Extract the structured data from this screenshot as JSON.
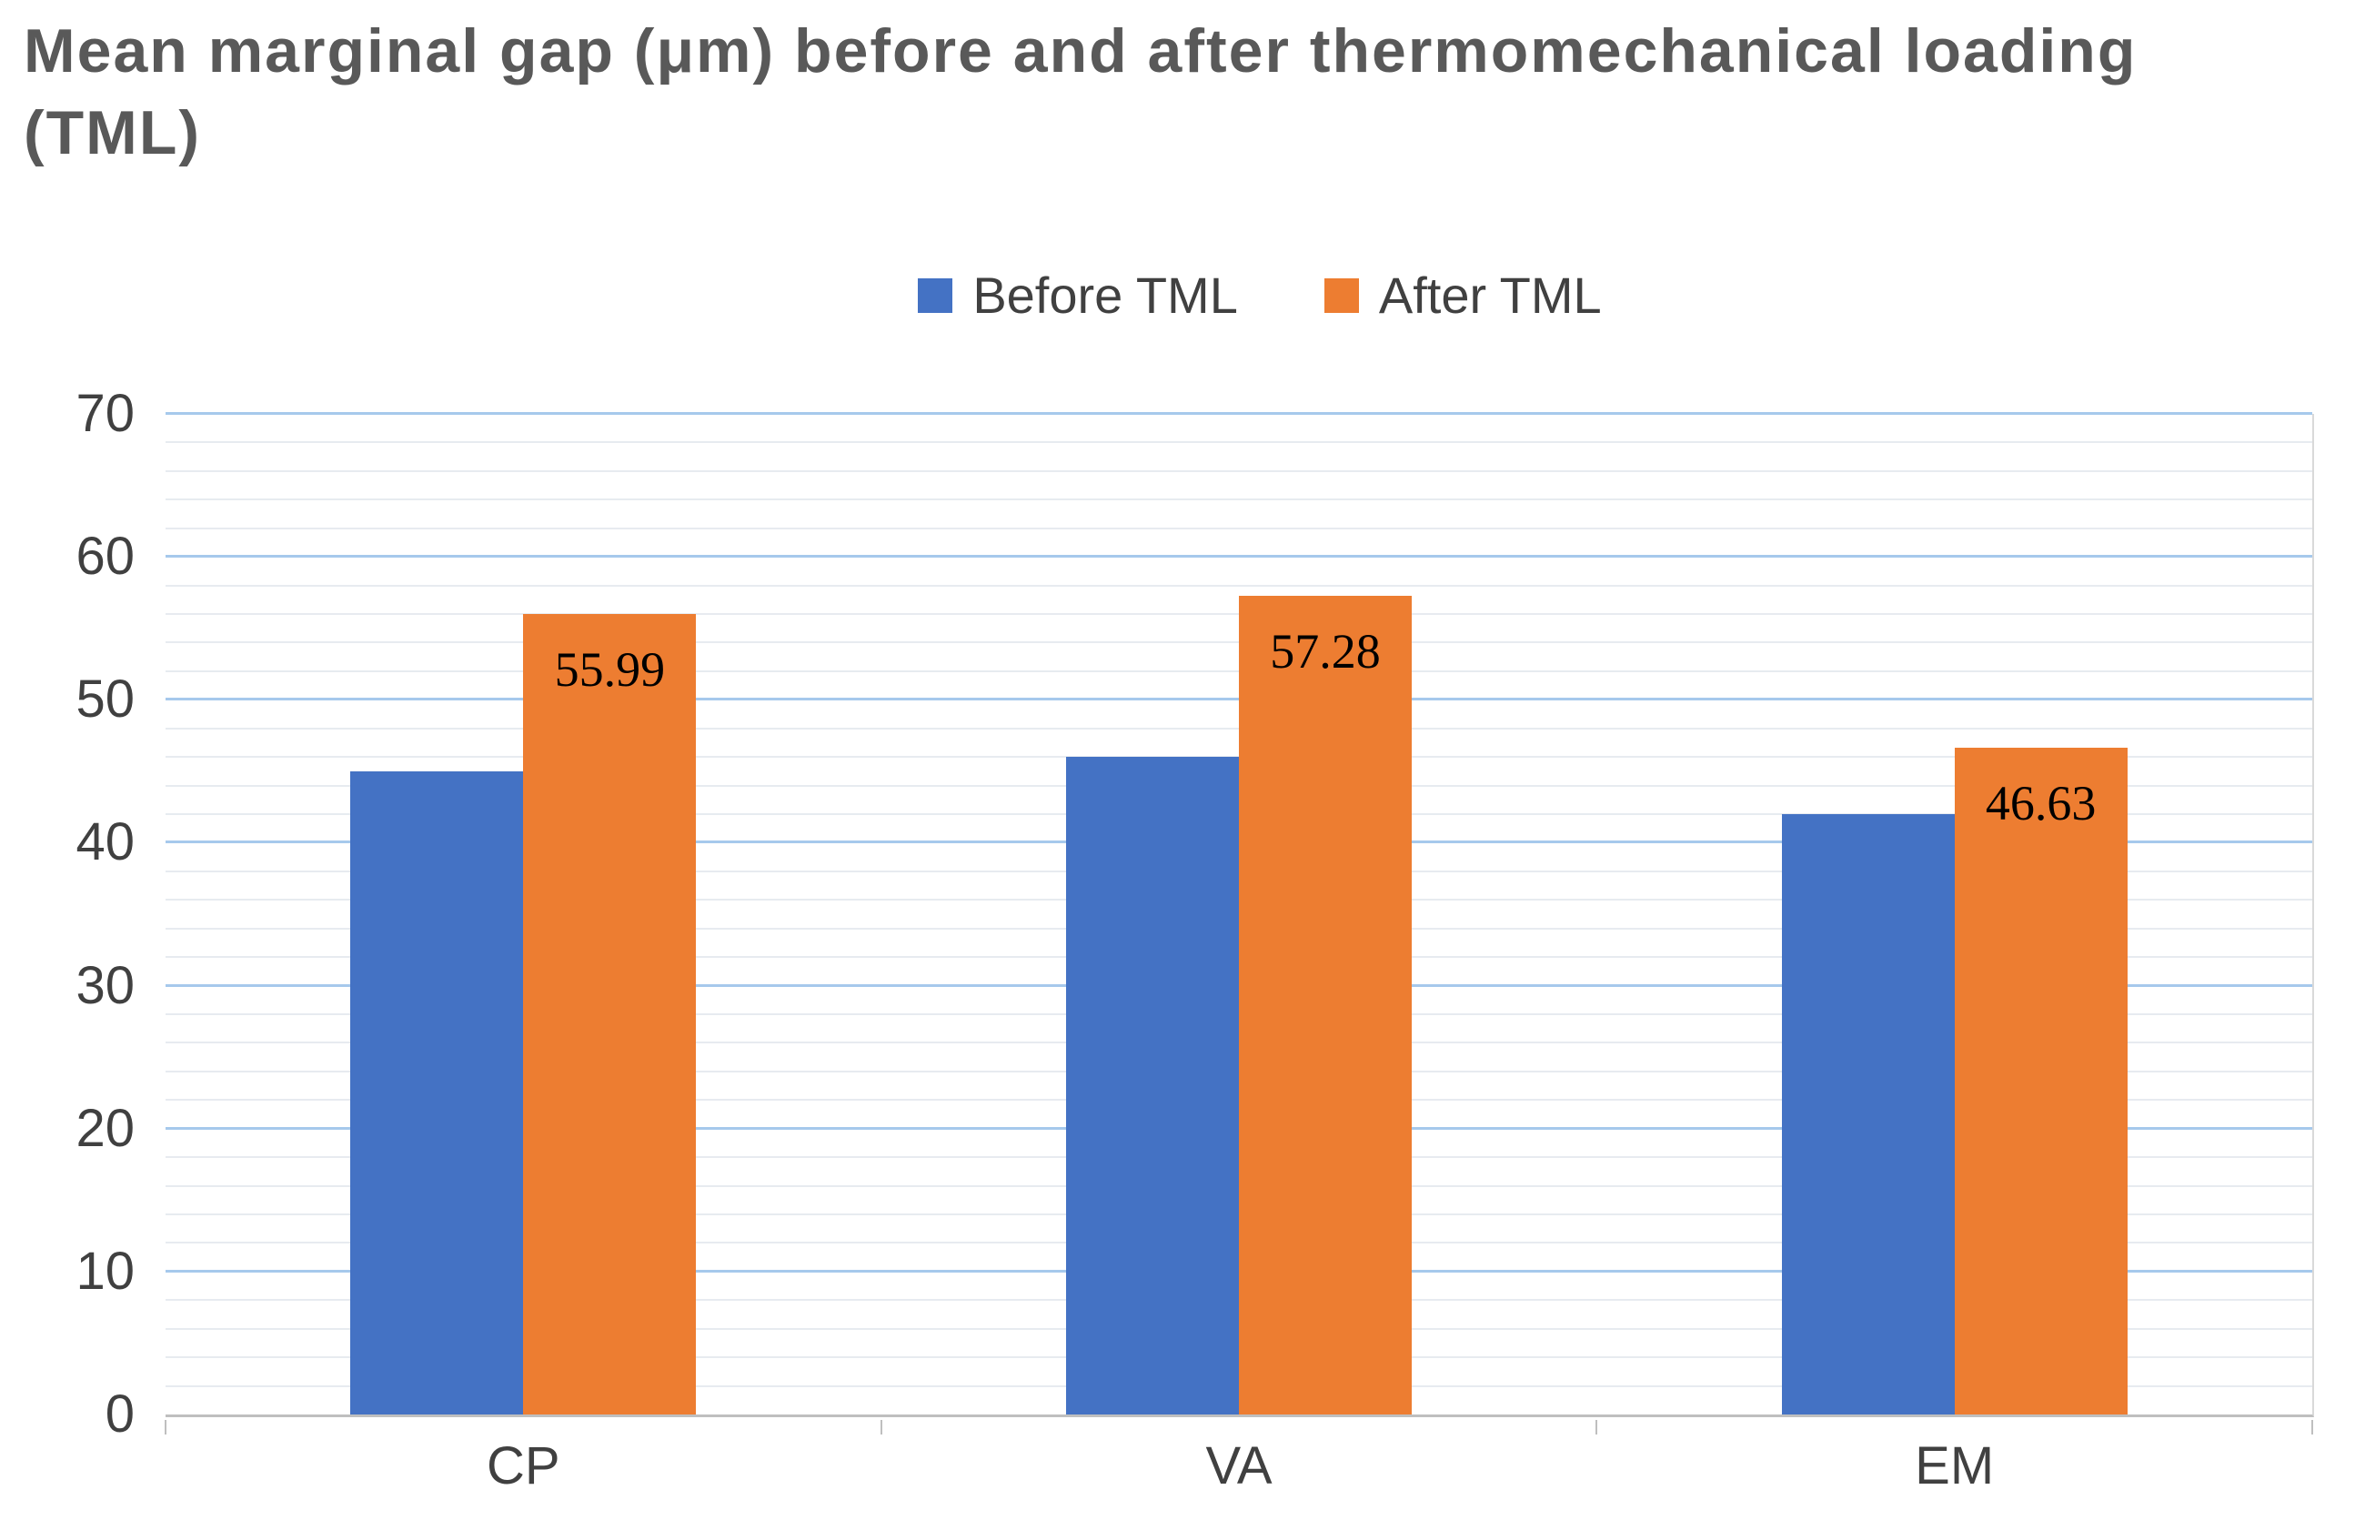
{
  "chart_data": {
    "type": "bar",
    "title": "Mean marginal gap (μm) before and after thermomechanical loading (TML)",
    "categories": [
      "CP",
      "VA",
      "EM"
    ],
    "series": [
      {
        "name": "Before TML",
        "color": "#4472C4",
        "values": [
          45,
          46,
          42
        ],
        "data_labels": [
          "",
          "",
          ""
        ]
      },
      {
        "name": "After TML",
        "color": "#ED7D31",
        "values": [
          55.99,
          57.28,
          46.63
        ],
        "data_labels": [
          "55.99",
          "57.28",
          "46.63"
        ]
      }
    ],
    "ylim": [
      0,
      70
    ],
    "yticks": [
      0,
      10,
      20,
      30,
      40,
      50,
      60,
      70
    ],
    "minor_unit": 2,
    "grid": {
      "major_color": "#A6C9EC",
      "minor_color": "#E7EBF0",
      "axis_color": "#BFBFBF"
    },
    "legend_position": "top-center"
  }
}
